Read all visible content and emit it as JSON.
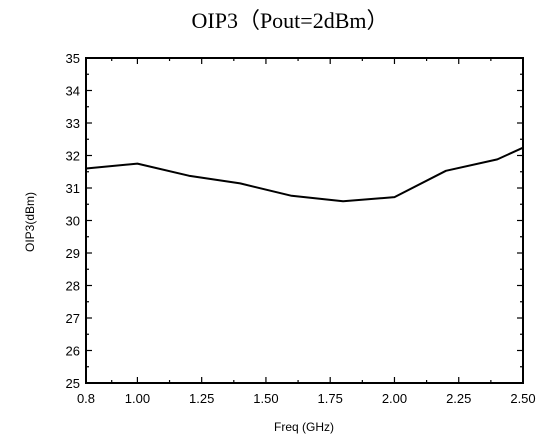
{
  "chart_data": {
    "type": "line",
    "title": "OIP3（Pout=2dBm）",
    "xlabel": "Freq (GHz)",
    "ylabel": "OIP3(dBm)",
    "xlim": [
      0.8,
      2.5
    ],
    "ylim": [
      25,
      35
    ],
    "x_ticks": [
      "0.8",
      "1.00",
      "1.25",
      "1.50",
      "1.75",
      "2.00",
      "2.25",
      "2.50"
    ],
    "y_ticks": [
      "25",
      "26",
      "27",
      "28",
      "29",
      "30",
      "31",
      "32",
      "33",
      "34",
      "35"
    ],
    "grid": false,
    "series": [
      {
        "x": [
          0.8,
          1.0,
          1.2,
          1.4,
          1.6,
          1.8,
          2.0,
          2.2,
          2.4,
          2.5
        ],
        "y": [
          31.6,
          31.75,
          31.38,
          31.14,
          30.76,
          30.59,
          30.72,
          31.53,
          31.88,
          32.24
        ],
        "color": "#000000"
      }
    ]
  }
}
